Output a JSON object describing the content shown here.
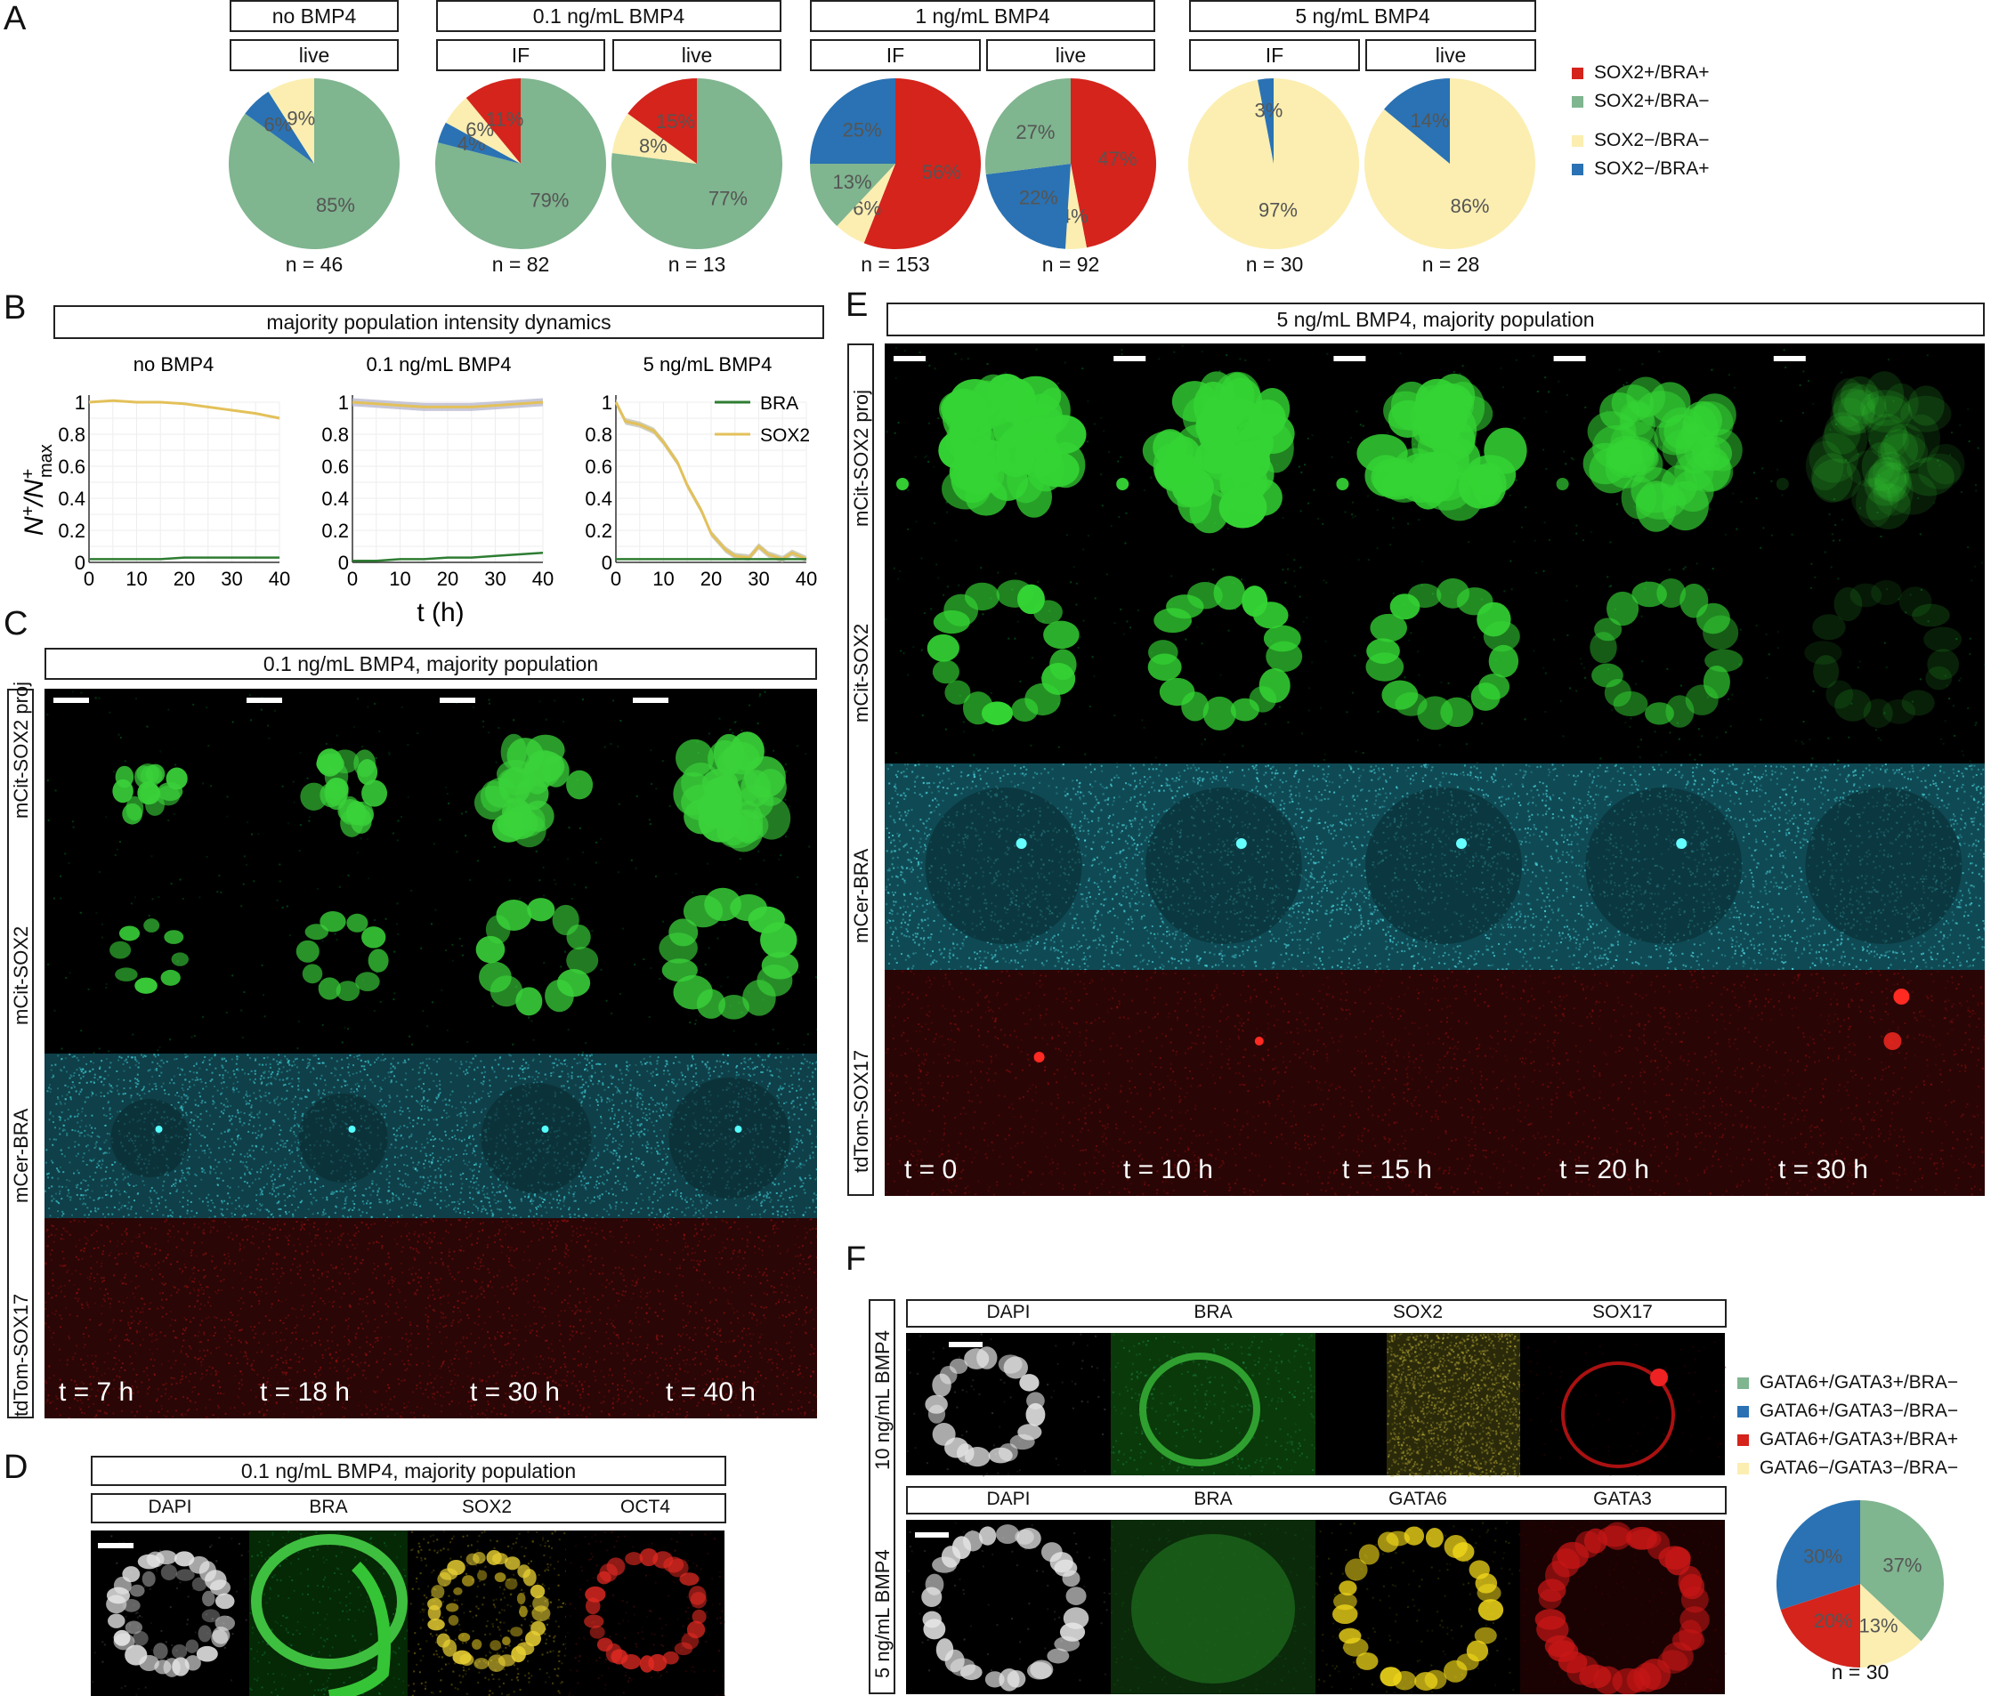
{
  "panels": {
    "A": "A",
    "B": "B",
    "C": "C",
    "D": "D",
    "E": "E",
    "F": "F"
  },
  "panelA": {
    "conditions": [
      "no BMP4",
      "0.1 ng/mL BMP4",
      "1 ng/mL BMP4",
      "5 ng/mL BMP4"
    ],
    "methods": [
      "live",
      "IF",
      "live",
      "IF",
      "live",
      "IF",
      "live"
    ],
    "pies": [
      {
        "slices": [
          {
            "cat": "SOX2+/BRA-",
            "v": 85
          },
          {
            "cat": "SOX2-/BRA+",
            "v": 6
          },
          {
            "cat": "SOX2-/BRA-",
            "v": 9
          }
        ],
        "labels": [
          "85%",
          "6%",
          "9%"
        ],
        "n": "n = 46"
      },
      {
        "slices": [
          {
            "cat": "SOX2+/BRA-",
            "v": 79
          },
          {
            "cat": "SOX2-/BRA+",
            "v": 4
          },
          {
            "cat": "SOX2-/BRA-",
            "v": 6
          },
          {
            "cat": "SOX2+/BRA+",
            "v": 11
          }
        ],
        "labels": [
          "79%",
          "4%",
          "6%",
          "11%"
        ],
        "n": "n = 82"
      },
      {
        "slices": [
          {
            "cat": "SOX2+/BRA-",
            "v": 77
          },
          {
            "cat": "SOX2-/BRA-",
            "v": 8
          },
          {
            "cat": "SOX2+/BRA+",
            "v": 15
          }
        ],
        "labels": [
          "77%",
          "8%",
          "15%"
        ],
        "n": "n = 13"
      },
      {
        "slices": [
          {
            "cat": "SOX2+/BRA+",
            "v": 56
          },
          {
            "cat": "SOX2-/BRA-",
            "v": 6
          },
          {
            "cat": "SOX2+/BRA-",
            "v": 13
          },
          {
            "cat": "SOX2-/BRA+",
            "v": 25
          }
        ],
        "labels": [
          "56%",
          "6%",
          "13%",
          "25%"
        ],
        "n": "n = 153"
      },
      {
        "slices": [
          {
            "cat": "SOX2+/BRA+",
            "v": 47
          },
          {
            "cat": "SOX2-/BRA-",
            "v": 4
          },
          {
            "cat": "SOX2-/BRA+",
            "v": 22
          },
          {
            "cat": "SOX2+/BRA-",
            "v": 27
          }
        ],
        "labels": [
          "47%",
          "4%",
          "22%",
          "27%"
        ],
        "n": "n = 92"
      },
      {
        "slices": [
          {
            "cat": "SOX2-/BRA-",
            "v": 97
          },
          {
            "cat": "SOX2-/BRA+",
            "v": 3
          }
        ],
        "labels": [
          "97%",
          "3%"
        ],
        "n": "n = 30"
      },
      {
        "slices": [
          {
            "cat": "SOX2-/BRA-",
            "v": 86
          },
          {
            "cat": "SOX2-/BRA+",
            "v": 14
          }
        ],
        "labels": [
          "86%",
          "14%"
        ],
        "n": "n = 28"
      }
    ],
    "legend": [
      {
        "label": "SOX2+/BRA+",
        "color": "#d4241c"
      },
      {
        "label": "SOX2+/BRA−",
        "color": "#7fb58f"
      },
      {
        "label": "SOX2−/BRA−",
        "color": "#fbeeb0"
      },
      {
        "label": "SOX2−/BRA+",
        "color": "#2a72b3"
      }
    ],
    "colors": {
      "SOX2+/BRA+": "#d4241c",
      "SOX2+/BRA-": "#7fb58f",
      "SOX2-/BRA-": "#fbeeb0",
      "SOX2-/BRA+": "#2a72b3"
    }
  },
  "panelB": {
    "header": "majority population intensity dynamics",
    "titles": [
      "no BMP4",
      "0.1 ng/mL BMP4",
      "5 ng/mL BMP4"
    ],
    "xlabel": "t (h)",
    "ylabel_main": "N",
    "ylabel_sup1": "+",
    "ylabel_div": "/N",
    "ylabel_sup2": "+",
    "ylabel_sub": "max",
    "legend": [
      {
        "name": "BRA",
        "color": "#2e7d32"
      },
      {
        "name": "SOX2",
        "color": "#e3c15a"
      }
    ],
    "yticks": [
      "0",
      "0.2",
      "0.4",
      "0.6",
      "0.8",
      "1"
    ],
    "xticks": [
      "0",
      "10",
      "20",
      "30",
      "40"
    ]
  },
  "chart_data": [
    {
      "type": "line",
      "title": "no BMP4",
      "xlabel": "t (h)",
      "ylabel": "N+/N+max",
      "xlim": [
        0,
        40
      ],
      "ylim": [
        0,
        1
      ],
      "x": [
        0,
        5,
        10,
        15,
        20,
        25,
        30,
        35,
        40
      ],
      "series": [
        {
          "name": "SOX2",
          "values": [
            1.0,
            1.01,
            1.0,
            1.0,
            0.99,
            0.97,
            0.95,
            0.93,
            0.9
          ]
        },
        {
          "name": "BRA",
          "values": [
            0.02,
            0.02,
            0.02,
            0.02,
            0.03,
            0.03,
            0.03,
            0.03,
            0.03
          ]
        }
      ]
    },
    {
      "type": "line",
      "title": "0.1 ng/mL BMP4",
      "xlabel": "t (h)",
      "ylabel": "N+/N+max",
      "xlim": [
        0,
        40
      ],
      "ylim": [
        0,
        1
      ],
      "x": [
        0,
        5,
        10,
        15,
        20,
        25,
        30,
        35,
        40
      ],
      "series": [
        {
          "name": "SOX2",
          "values": [
            1.0,
            0.99,
            0.98,
            0.97,
            0.97,
            0.97,
            0.98,
            0.99,
            1.0
          ]
        },
        {
          "name": "BRA",
          "values": [
            0.01,
            0.01,
            0.02,
            0.02,
            0.03,
            0.03,
            0.04,
            0.05,
            0.06
          ]
        }
      ]
    },
    {
      "type": "line",
      "title": "5 ng/mL BMP4",
      "xlabel": "t (h)",
      "ylabel": "N+/N+max",
      "xlim": [
        0,
        40
      ],
      "ylim": [
        0,
        1
      ],
      "x": [
        0,
        2,
        5,
        8,
        10,
        13,
        15,
        18,
        20,
        23,
        25,
        28,
        30,
        32,
        35,
        37,
        40
      ],
      "series": [
        {
          "name": "SOX2",
          "values": [
            1.0,
            0.88,
            0.86,
            0.82,
            0.75,
            0.62,
            0.48,
            0.32,
            0.18,
            0.08,
            0.04,
            0.03,
            0.1,
            0.05,
            0.02,
            0.06,
            0.02
          ]
        },
        {
          "name": "BRA",
          "values": [
            0.02,
            0.02,
            0.02,
            0.02,
            0.02,
            0.02,
            0.02,
            0.02,
            0.02,
            0.02,
            0.02,
            0.02,
            0.02,
            0.02,
            0.02,
            0.02,
            0.02
          ]
        }
      ]
    },
    {
      "type": "pie",
      "title": "",
      "categories": [
        "GATA6+/GATA3+/BRA−",
        "GATA6+/GATA3−/BRA−",
        "GATA6+/GATA3+/BRA+",
        "GATA6−/GATA3−/BRA−"
      ],
      "values": [
        37,
        30,
        20,
        13
      ]
    }
  ],
  "panelC": {
    "header": "0.1 ng/mL BMP4, majority population",
    "rows": [
      "mCit-SOX2 proj",
      "mCit-SOX2",
      "mCer-BRA",
      "tdTom-SOX17"
    ],
    "times": [
      "t = 7 h",
      "t = 18 h",
      "t = 30 h",
      "t = 40 h"
    ]
  },
  "panelD": {
    "header": "0.1 ng/mL BMP4, majority population",
    "channels": [
      "DAPI",
      "BRA",
      "SOX2",
      "OCT4"
    ]
  },
  "panelE": {
    "header": "5 ng/mL BMP4, majority population",
    "rows": [
      "mCit-SOX2 proj",
      "mCit-SOX2",
      "mCer-BRA",
      "tdTom-SOX17"
    ],
    "times": [
      "t = 0",
      "t = 10 h",
      "t = 15 h",
      "t = 20 h",
      "t = 30 h"
    ]
  },
  "panelF": {
    "row1_label": "10 ng/mL BMP4",
    "row2_label": "5 ng/mL BMP4",
    "row1_channels": [
      "DAPI",
      "BRA",
      "SOX2",
      "SOX17"
    ],
    "row2_channels": [
      "DAPI",
      "BRA",
      "GATA6",
      "GATA3"
    ],
    "legend": [
      {
        "label": "GATA6+/GATA3+/BRA−",
        "color": "#7fb58f"
      },
      {
        "label": "GATA6+/GATA3−/BRA−",
        "color": "#2a72b3"
      },
      {
        "label": "GATA6+/GATA3+/BRA+",
        "color": "#d4241c"
      },
      {
        "label": "GATA6−/GATA3−/BRA−",
        "color": "#fbeeb0"
      }
    ],
    "pie_labels": [
      "37%",
      "30%",
      "20%",
      "13%"
    ],
    "n": "n = 30"
  }
}
